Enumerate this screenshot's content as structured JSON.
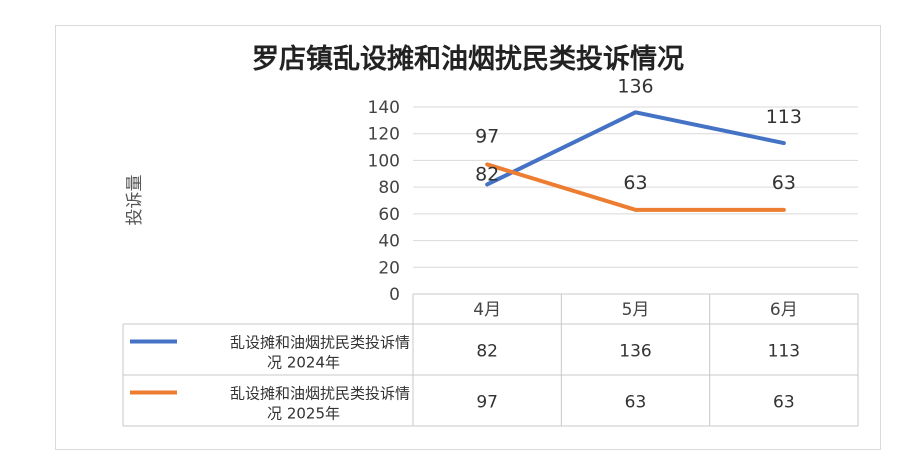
{
  "chart_data": {
    "type": "line",
    "title": "罗店镇乱设摊和油烟扰民类投诉情况",
    "ylabel": "投诉量",
    "xlabel": "",
    "categories": [
      "4月",
      "5月",
      "6月"
    ],
    "ylim": [
      0,
      140
    ],
    "yticks": [
      0,
      20,
      40,
      60,
      80,
      100,
      120,
      140
    ],
    "grid": true,
    "series": [
      {
        "name": "乱设摊和油烟扰民类投诉情况 2024年",
        "name_lines": [
          "乱设摊和油烟扰民类投诉情",
          "况 2024年"
        ],
        "values": [
          82,
          136,
          113
        ],
        "color": "#4472c4"
      },
      {
        "name": "乱设摊和油烟扰民类投诉情况 2025年",
        "name_lines": [
          "乱设摊和油烟扰民类投诉情",
          "况 2025年"
        ],
        "values": [
          97,
          63,
          63
        ],
        "color": "#ed7d31"
      }
    ]
  }
}
